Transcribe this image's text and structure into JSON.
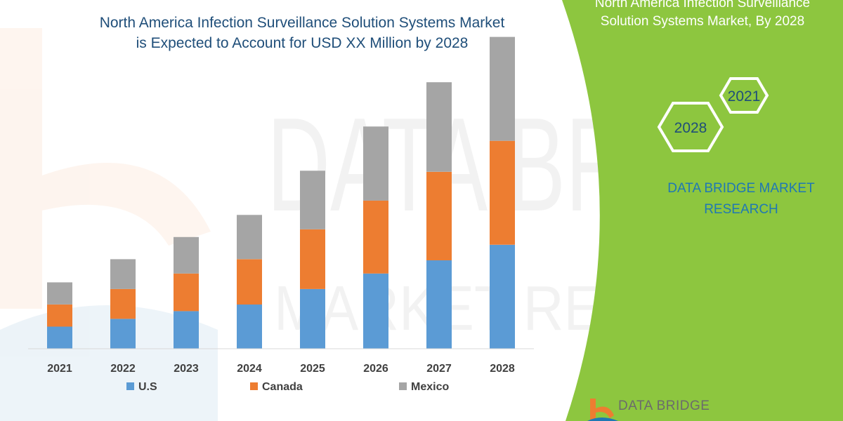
{
  "header": {
    "title_line1": "North America Infection Surveillance Solution Systems Market",
    "title_line2": "is Expected to Account for USD XX Million by 2028"
  },
  "side_panel": {
    "title_line1": "North America Infection Surveillance",
    "title_line2": "Solution Systems Market, By 2028",
    "hex_top_year": "2021",
    "hex_bottom_year": "2028",
    "brand_line1": "DATA BRIDGE MARKET",
    "brand_line2": "RESEARCH",
    "footer_logo": "DATA BRIDGE",
    "panel_color": "#8dc63f"
  },
  "watermark": {
    "line1": "DATA BRIDGE",
    "line2": "MARKET RESEARCH"
  },
  "chart_data": {
    "type": "bar",
    "stacked": true,
    "categories": [
      "2021",
      "2022",
      "2023",
      "2024",
      "2025",
      "2026",
      "2027",
      "2028"
    ],
    "series": [
      {
        "name": "U.S",
        "color": "#5b9bd5",
        "values": [
          1.0,
          1.35,
          1.7,
          2.0,
          2.7,
          3.4,
          4.0,
          4.7
        ]
      },
      {
        "name": "Canada",
        "color": "#ed7d31",
        "values": [
          1.0,
          1.35,
          1.7,
          2.05,
          2.7,
          3.3,
          4.0,
          4.7
        ]
      },
      {
        "name": "Mexico",
        "color": "#a5a5a5",
        "values": [
          1.0,
          1.35,
          1.65,
          2.0,
          2.65,
          3.35,
          4.05,
          4.7
        ]
      }
    ],
    "ylim": [
      0,
      14.5
    ],
    "grid": false,
    "legend_position": "bottom"
  }
}
